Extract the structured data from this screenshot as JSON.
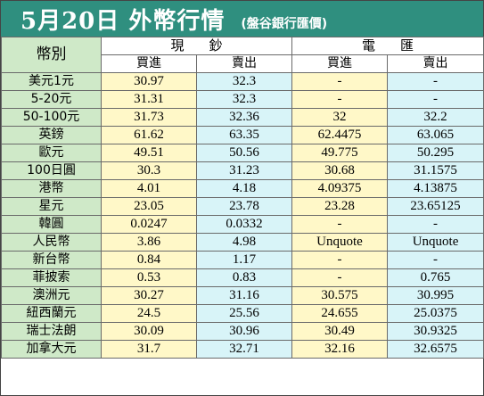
{
  "title": {
    "main": "5月20日 外幣行情",
    "sub": "(盤谷銀行匯價)"
  },
  "header": {
    "currency_col": "幣別",
    "cash_group": "現鈔",
    "transfer_group": "電匯",
    "buy": "買進",
    "sell": "賣出"
  },
  "rows": [
    {
      "currency": "美元1元",
      "cash_buy": "30.97",
      "cash_sell": "32.3",
      "tt_buy": "-",
      "tt_sell": "-"
    },
    {
      "currency": "5-20元",
      "cash_buy": "31.31",
      "cash_sell": "32.3",
      "tt_buy": "-",
      "tt_sell": "-"
    },
    {
      "currency": "50-100元",
      "cash_buy": "31.73",
      "cash_sell": "32.36",
      "tt_buy": "32",
      "tt_sell": "32.2"
    },
    {
      "currency": "英鎊",
      "cash_buy": "61.62",
      "cash_sell": "63.35",
      "tt_buy": "62.4475",
      "tt_sell": "63.065"
    },
    {
      "currency": "歐元",
      "cash_buy": "49.51",
      "cash_sell": "50.56",
      "tt_buy": "49.775",
      "tt_sell": "50.295"
    },
    {
      "currency": "100日圓",
      "cash_buy": "30.3",
      "cash_sell": "31.23",
      "tt_buy": "30.68",
      "tt_sell": "31.1575"
    },
    {
      "currency": "港幣",
      "cash_buy": "4.01",
      "cash_sell": "4.18",
      "tt_buy": "4.09375",
      "tt_sell": "4.13875"
    },
    {
      "currency": "星元",
      "cash_buy": "23.05",
      "cash_sell": "23.78",
      "tt_buy": "23.28",
      "tt_sell": "23.65125"
    },
    {
      "currency": "韓圓",
      "cash_buy": "0.0247",
      "cash_sell": "0.0332",
      "tt_buy": "-",
      "tt_sell": "-"
    },
    {
      "currency": "人民幣",
      "cash_buy": "3.86",
      "cash_sell": "4.98",
      "tt_buy": "Unquote",
      "tt_sell": "Unquote"
    },
    {
      "currency": "新台幣",
      "cash_buy": "0.84",
      "cash_sell": "1.17",
      "tt_buy": "-",
      "tt_sell": "-"
    },
    {
      "currency": "菲披索",
      "cash_buy": "0.53",
      "cash_sell": "0.83",
      "tt_buy": "-",
      "tt_sell": "0.765"
    },
    {
      "currency": "澳洲元",
      "cash_buy": "30.27",
      "cash_sell": "31.16",
      "tt_buy": "30.575",
      "tt_sell": "30.995"
    },
    {
      "currency": "紐西蘭元",
      "cash_buy": "24.5",
      "cash_sell": "25.56",
      "tt_buy": "24.655",
      "tt_sell": "25.0375"
    },
    {
      "currency": "瑞士法朗",
      "cash_buy": "30.09",
      "cash_sell": "30.96",
      "tt_buy": "30.49",
      "tt_sell": "30.9325"
    },
    {
      "currency": "加拿大元",
      "cash_buy": "31.7",
      "cash_sell": "32.71",
      "tt_buy": "32.16",
      "tt_sell": "32.6575"
    }
  ],
  "colors": {
    "title_bg": "#2f8f7f",
    "currency_bg": "#cfe9c8",
    "buy_bg": "#fff8c8",
    "sell_bg": "#d8f4f8"
  }
}
